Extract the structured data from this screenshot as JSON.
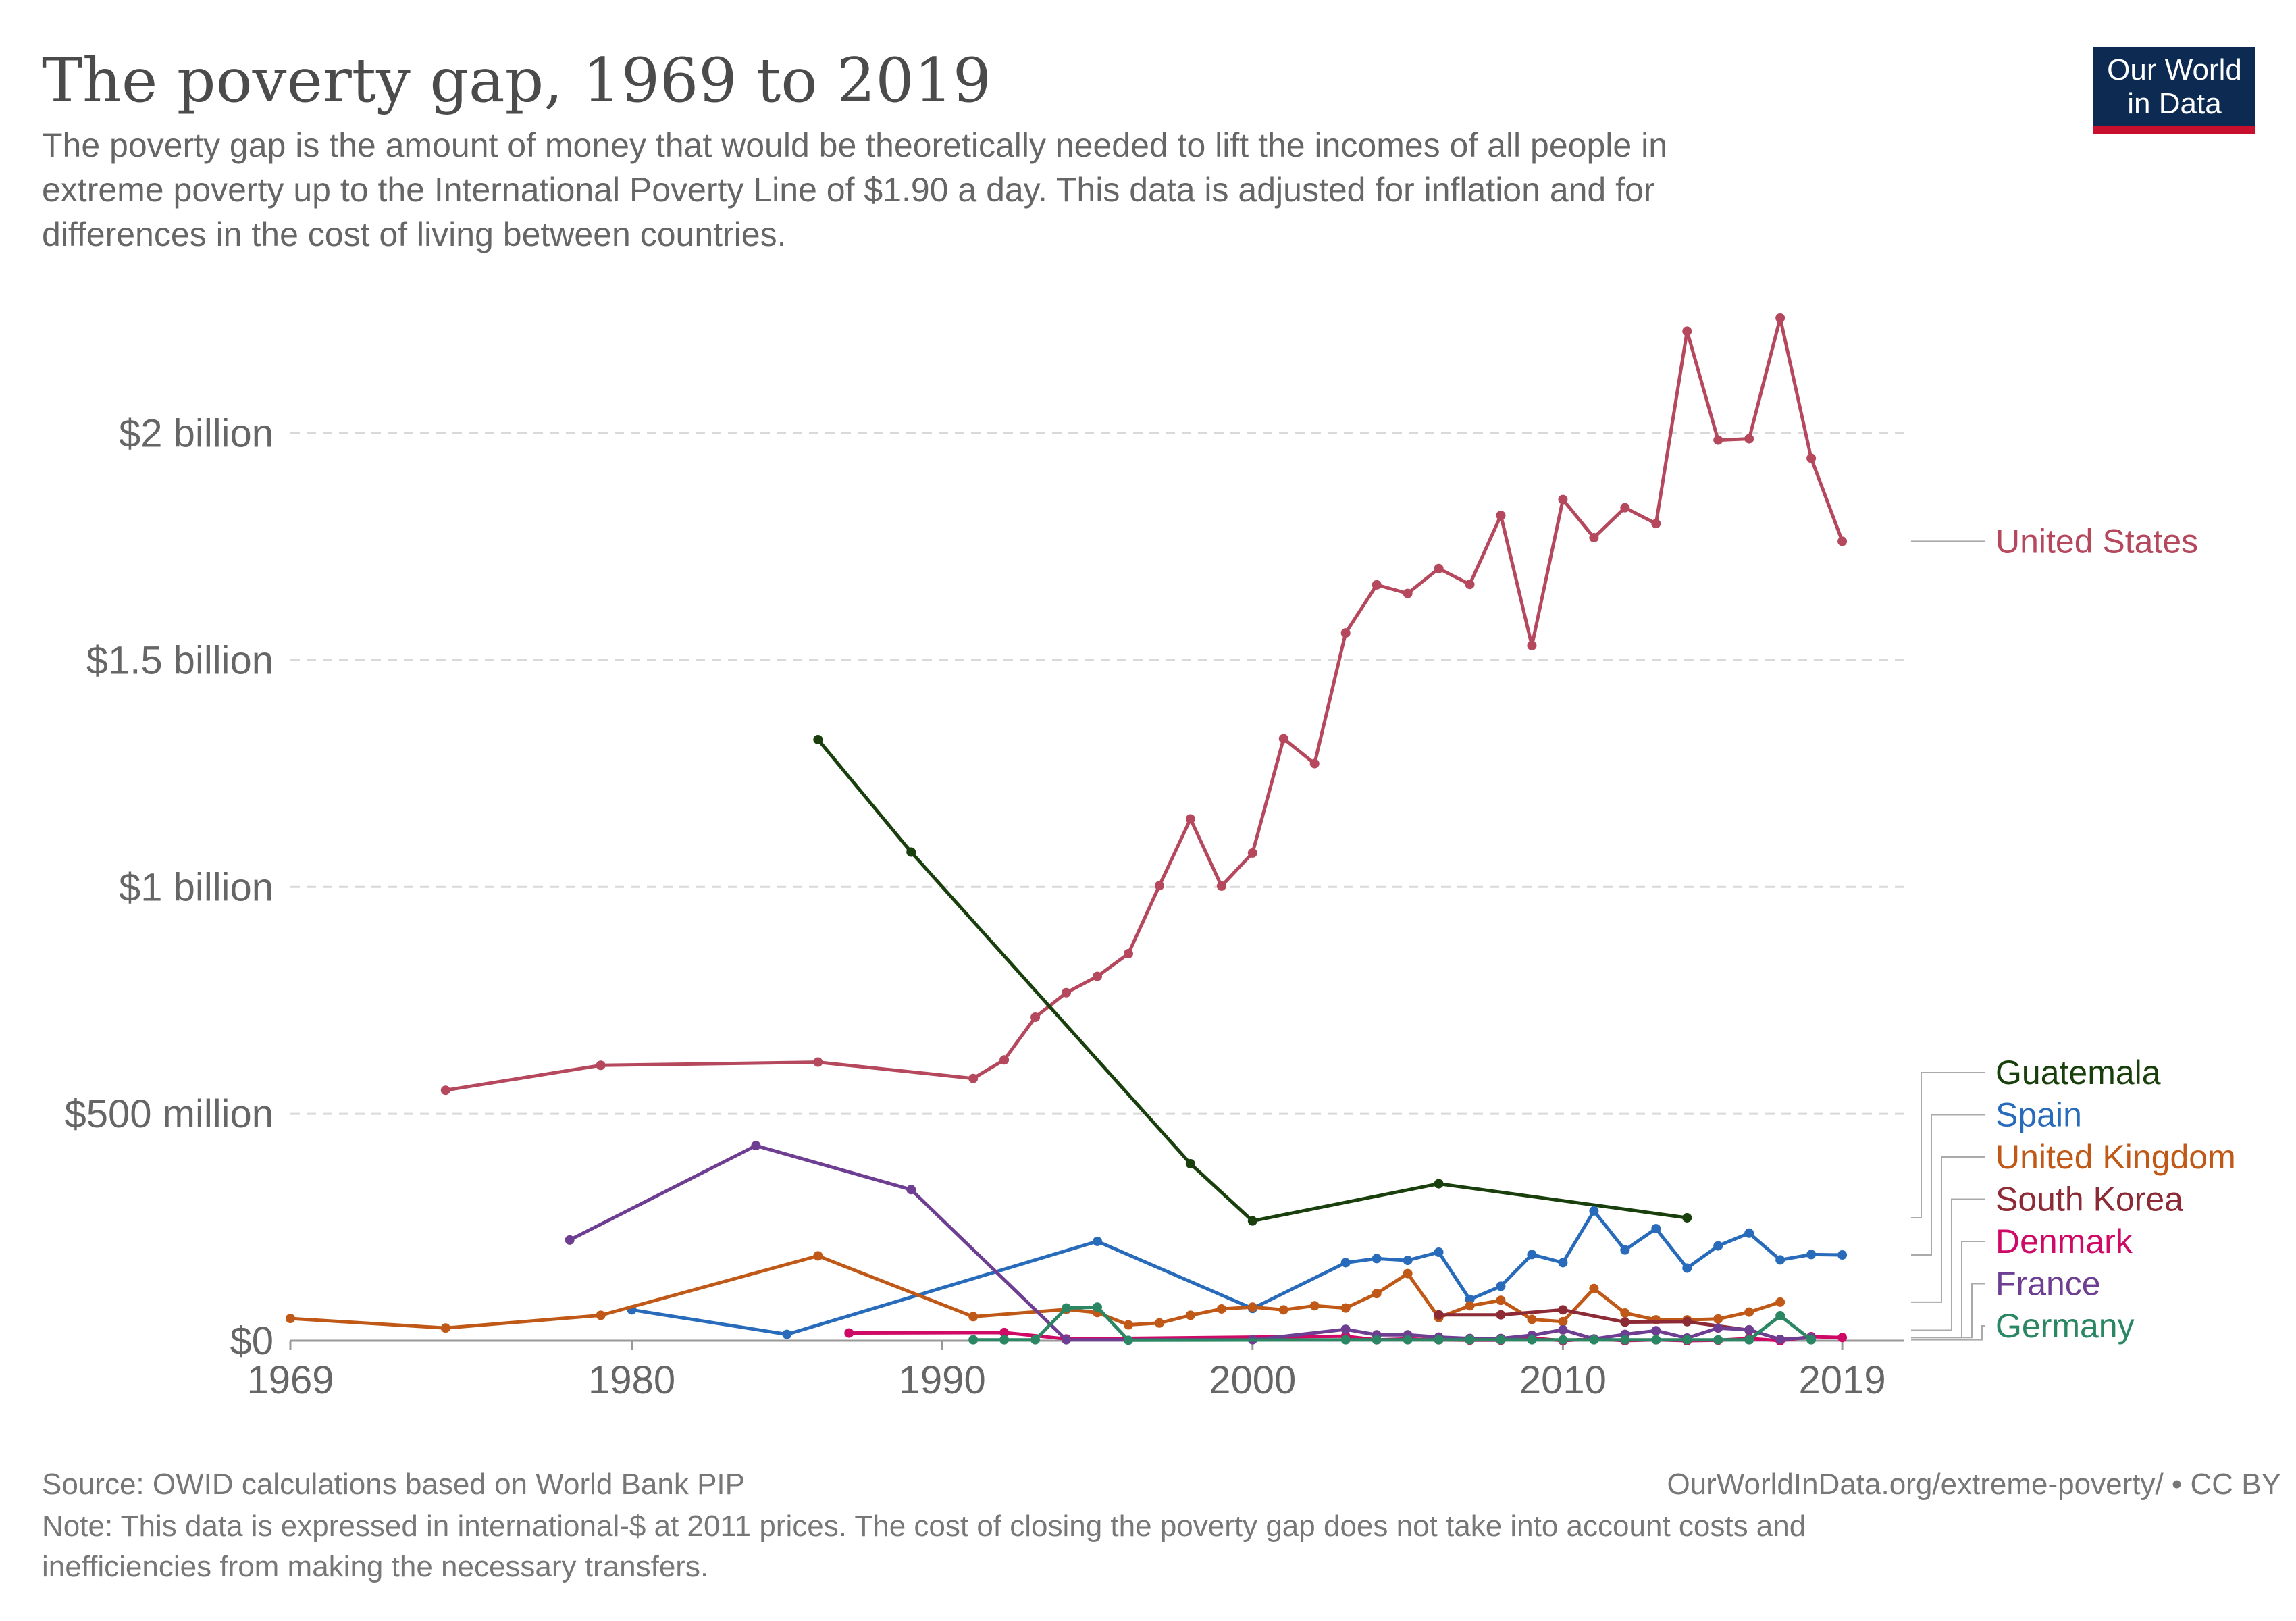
{
  "header": {
    "title": "The poverty gap, 1969 to 2019",
    "subtitle_lines": [
      "The poverty gap is the amount of money that would be theoretically needed to lift the incomes of all people in",
      "extreme poverty up to the International Poverty Line of $1.90 a day. This data is adjusted for inflation and for",
      "differences in the cost of living between countries."
    ]
  },
  "logo": {
    "line1": "Our World",
    "line2": "in Data",
    "bg_color": "#0d2b52",
    "bar_color": "#c8102e"
  },
  "footer": {
    "source": "Source: OWID calculations based on World Bank PIP",
    "url": "OurWorldInData.org/extreme-poverty/ • CC BY",
    "note_lines": [
      "Note: This data is expressed in international-$ at 2011 prices. The cost of closing the poverty gap does not take into account costs and",
      "inefficiencies from making the necessary transfers."
    ]
  },
  "chart_data": {
    "type": "line",
    "title": "The poverty gap, 1969 to 2019",
    "xlabel": "",
    "ylabel": "",
    "xlim": [
      1969,
      2021
    ],
    "ylim": [
      0,
      2300000000
    ],
    "x_ticks": [
      {
        "value": 1969,
        "label": "1969"
      },
      {
        "value": 1980,
        "label": "1980"
      },
      {
        "value": 1990,
        "label": "1990"
      },
      {
        "value": 2000,
        "label": "2000"
      },
      {
        "value": 2010,
        "label": "2010"
      },
      {
        "value": 2019,
        "label": "2019"
      }
    ],
    "y_ticks": [
      {
        "value": 0,
        "label": "$0"
      },
      {
        "value": 500000000,
        "label": "$500 million"
      },
      {
        "value": 1000000000,
        "label": "$1 billion"
      },
      {
        "value": 1500000000,
        "label": "$1.5 billion"
      },
      {
        "value": 2000000000,
        "label": "$2 billion"
      }
    ],
    "grid": true,
    "series": [
      {
        "name": "United States",
        "color": "#b5485d",
        "points": [
          [
            1974,
            552000000
          ],
          [
            1979,
            607000000
          ],
          [
            1986,
            614000000
          ],
          [
            1991,
            578000000
          ],
          [
            1992,
            619000000
          ],
          [
            1993,
            713000000
          ],
          [
            1994,
            767000000
          ],
          [
            1995,
            803000000
          ],
          [
            1996,
            853000000
          ],
          [
            1997,
            1003000000
          ],
          [
            1998,
            1150000000
          ],
          [
            1999,
            1002000000
          ],
          [
            2000,
            1075000000
          ],
          [
            2001,
            1327000000
          ],
          [
            2002,
            1272000000
          ],
          [
            2003,
            1560000000
          ],
          [
            2004,
            1666000000
          ],
          [
            2005,
            1647000000
          ],
          [
            2006,
            1702000000
          ],
          [
            2007,
            1667000000
          ],
          [
            2008,
            1819000000
          ],
          [
            2009,
            1532000000
          ],
          [
            2010,
            1854000000
          ],
          [
            2011,
            1770000000
          ],
          [
            2012,
            1836000000
          ],
          [
            2013,
            1801000000
          ],
          [
            2014,
            2225000000
          ],
          [
            2015,
            1985000000
          ],
          [
            2016,
            1988000000
          ],
          [
            2017,
            2254000000
          ],
          [
            2018,
            1945000000
          ],
          [
            2019,
            1762000000
          ]
        ]
      },
      {
        "name": "Guatemala",
        "color": "#183f0c",
        "points": [
          [
            1986,
            1325000000
          ],
          [
            1989,
            1077000000
          ],
          [
            1998,
            390000000
          ],
          [
            2000,
            264000000
          ],
          [
            2006,
            346000000
          ],
          [
            2014,
            271000000
          ]
        ]
      },
      {
        "name": "Spain",
        "color": "#286bbb",
        "points": [
          [
            1980,
            68000000
          ],
          [
            1985,
            14000000
          ],
          [
            1995,
            219000000
          ],
          [
            2000,
            71000000
          ],
          [
            2003,
            172000000
          ],
          [
            2004,
            181000000
          ],
          [
            2005,
            177000000
          ],
          [
            2006,
            195000000
          ],
          [
            2007,
            91000000
          ],
          [
            2008,
            120000000
          ],
          [
            2009,
            190000000
          ],
          [
            2010,
            172000000
          ],
          [
            2011,
            286000000
          ],
          [
            2012,
            200000000
          ],
          [
            2013,
            247000000
          ],
          [
            2014,
            160000000
          ],
          [
            2015,
            209000000
          ],
          [
            2016,
            237000000
          ],
          [
            2017,
            178000000
          ],
          [
            2018,
            190000000
          ],
          [
            2019,
            189000000
          ]
        ]
      },
      {
        "name": "United Kingdom",
        "color": "#c05917",
        "points": [
          [
            1969,
            49000000
          ],
          [
            1974,
            28000000
          ],
          [
            1979,
            56000000
          ],
          [
            1986,
            187000000
          ],
          [
            1991,
            53000000
          ],
          [
            1994,
            69000000
          ],
          [
            1995,
            62000000
          ],
          [
            1996,
            35000000
          ],
          [
            1997,
            39000000
          ],
          [
            1998,
            56000000
          ],
          [
            1999,
            70000000
          ],
          [
            2000,
            74000000
          ],
          [
            2001,
            68000000
          ],
          [
            2002,
            77000000
          ],
          [
            2003,
            72000000
          ],
          [
            2004,
            104000000
          ],
          [
            2005,
            148000000
          ],
          [
            2006,
            51000000
          ],
          [
            2007,
            77000000
          ],
          [
            2008,
            89000000
          ],
          [
            2009,
            47000000
          ],
          [
            2010,
            42000000
          ],
          [
            2011,
            115000000
          ],
          [
            2012,
            61000000
          ],
          [
            2013,
            46000000
          ],
          [
            2014,
            46000000
          ],
          [
            2015,
            48000000
          ],
          [
            2016,
            63000000
          ],
          [
            2017,
            85000000
          ]
        ]
      },
      {
        "name": "South Korea",
        "color": "#8c2b35",
        "points": [
          [
            2006,
            57000000
          ],
          [
            2008,
            57000000
          ],
          [
            2010,
            68000000
          ],
          [
            2012,
            41000000
          ],
          [
            2014,
            42000000
          ],
          [
            2016,
            23000000
          ]
        ]
      },
      {
        "name": "Denmark",
        "color": "#cf0a66",
        "points": [
          [
            1987,
            17000000
          ],
          [
            1992,
            18000000
          ],
          [
            1994,
            4000000
          ],
          [
            2003,
            10000000
          ],
          [
            2004,
            2000000
          ],
          [
            2005,
            4000000
          ],
          [
            2006,
            2000000
          ],
          [
            2007,
            1000000
          ],
          [
            2008,
            1000000
          ],
          [
            2009,
            6000000
          ],
          [
            2010,
            0
          ],
          [
            2011,
            4000000
          ],
          [
            2012,
            0
          ],
          [
            2013,
            2000000
          ],
          [
            2014,
            0
          ],
          [
            2015,
            1000000
          ],
          [
            2016,
            5000000
          ],
          [
            2017,
            0
          ],
          [
            2018,
            9000000
          ],
          [
            2019,
            7000000
          ]
        ]
      },
      {
        "name": "France",
        "color": "#6d3e91",
        "points": [
          [
            1978,
            222000000
          ],
          [
            1984,
            430000000
          ],
          [
            1989,
            333000000
          ],
          [
            1994,
            2000000
          ],
          [
            2000,
            2000000
          ],
          [
            2003,
            25000000
          ],
          [
            2004,
            13000000
          ],
          [
            2005,
            13000000
          ],
          [
            2006,
            8000000
          ],
          [
            2007,
            5000000
          ],
          [
            2008,
            5000000
          ],
          [
            2009,
            12000000
          ],
          [
            2010,
            24000000
          ],
          [
            2011,
            4000000
          ],
          [
            2012,
            14000000
          ],
          [
            2013,
            22000000
          ],
          [
            2014,
            6000000
          ],
          [
            2015,
            28000000
          ],
          [
            2016,
            24000000
          ],
          [
            2017,
            3000000
          ],
          [
            2018,
            7000000
          ]
        ]
      },
      {
        "name": "Germany",
        "color": "#2a8663",
        "points": [
          [
            1991,
            2000000
          ],
          [
            1992,
            2000000
          ],
          [
            1993,
            2000000
          ],
          [
            1994,
            72000000
          ],
          [
            1995,
            74000000
          ],
          [
            1996,
            1000000
          ],
          [
            2003,
            2000000
          ],
          [
            2004,
            2000000
          ],
          [
            2005,
            2000000
          ],
          [
            2006,
            2000000
          ],
          [
            2007,
            2000000
          ],
          [
            2008,
            2000000
          ],
          [
            2009,
            2000000
          ],
          [
            2010,
            2000000
          ],
          [
            2011,
            2000000
          ],
          [
            2012,
            2000000
          ],
          [
            2013,
            2000000
          ],
          [
            2014,
            2000000
          ],
          [
            2015,
            2000000
          ],
          [
            2016,
            2000000
          ],
          [
            2017,
            55000000
          ],
          [
            2018,
            2000000
          ]
        ]
      }
    ],
    "legend_order": [
      "United States",
      "Guatemala",
      "Spain",
      "United Kingdom",
      "South Korea",
      "Denmark",
      "France",
      "Germany"
    ]
  }
}
